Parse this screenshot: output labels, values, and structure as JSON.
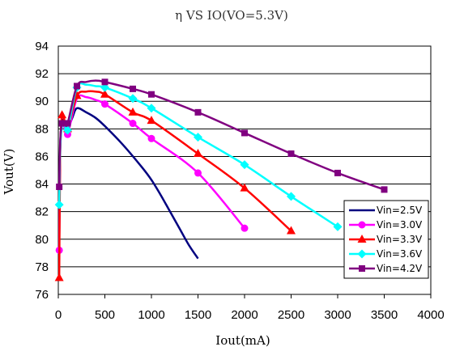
{
  "chart_data": {
    "type": "line",
    "title": "η  VS  IO(VO=5.3V)",
    "xlabel": "Iout(mA)",
    "ylabel": "Vout(V)",
    "xlim": [
      0,
      4000
    ],
    "ylim": [
      76,
      94
    ],
    "xticks": [
      0,
      500,
      1000,
      1500,
      2000,
      2500,
      3000,
      3500,
      4000
    ],
    "yticks": [
      76,
      78,
      80,
      82,
      84,
      86,
      88,
      90,
      92,
      94
    ],
    "grid": "horizontal",
    "legend": "bottom-right",
    "series": [
      {
        "name": "Vin=2.5V",
        "color": "#000080",
        "marker": "none",
        "x": [
          10,
          20,
          40,
          70,
          100,
          150,
          200,
          300,
          400,
          500,
          700,
          900,
          1000,
          1100,
          1200,
          1300,
          1400,
          1500
        ],
        "y": [
          79.5,
          86.5,
          88.5,
          88.5,
          88.0,
          88.8,
          89.5,
          89.2,
          88.8,
          88.2,
          86.8,
          85.2,
          84.3,
          83.2,
          82.0,
          80.8,
          79.6,
          78.6
        ]
      },
      {
        "name": "Vin=3.0V",
        "color": "#FF00FF",
        "marker": "circle",
        "x": [
          10,
          20,
          40,
          70,
          100,
          200,
          300,
          400,
          500,
          800,
          1000,
          1500,
          2000
        ],
        "y": [
          79.2,
          86.5,
          88.5,
          88.0,
          87.6,
          90.2,
          90.3,
          90.1,
          89.8,
          88.4,
          87.3,
          84.8,
          80.8
        ],
        "markers_at": [
          10,
          100,
          500,
          800,
          1000,
          1500,
          2000
        ]
      },
      {
        "name": "Vin=3.3V",
        "color": "#FF0000",
        "marker": "triangle",
        "x": [
          10,
          20,
          40,
          70,
          100,
          200,
          300,
          400,
          500,
          800,
          1000,
          1500,
          2000,
          2500
        ],
        "y": [
          77.2,
          86.0,
          89.0,
          88.5,
          88.0,
          90.4,
          90.7,
          90.7,
          90.5,
          89.2,
          88.6,
          86.2,
          83.7,
          80.6
        ],
        "markers_at": [
          10,
          40,
          100,
          200,
          500,
          800,
          1000,
          1500,
          2000,
          2500
        ]
      },
      {
        "name": "Vin=3.6V",
        "color": "#00FFFF",
        "marker": "diamond",
        "x": [
          10,
          20,
          40,
          70,
          100,
          200,
          300,
          400,
          500,
          800,
          1000,
          1500,
          2000,
          2500,
          3000
        ],
        "y": [
          82.5,
          86.5,
          88.2,
          88.2,
          87.9,
          91.0,
          91.2,
          91.1,
          91.0,
          90.2,
          89.5,
          87.4,
          85.4,
          83.1,
          80.9
        ],
        "markers_at": [
          10,
          100,
          200,
          500,
          800,
          1000,
          1500,
          2000,
          2500,
          3000
        ]
      },
      {
        "name": "Vin=4.2V",
        "color": "#800080",
        "marker": "square",
        "x": [
          10,
          20,
          40,
          70,
          100,
          200,
          300,
          400,
          500,
          800,
          1000,
          1500,
          2000,
          2500,
          3000,
          3500
        ],
        "y": [
          83.8,
          87.0,
          88.4,
          88.4,
          88.4,
          91.1,
          91.4,
          91.5,
          91.4,
          90.9,
          90.5,
          89.2,
          87.7,
          86.2,
          84.8,
          83.6
        ],
        "markers_at": [
          10,
          40,
          100,
          200,
          500,
          800,
          1000,
          1500,
          2000,
          2500,
          3000,
          3500
        ]
      }
    ]
  }
}
